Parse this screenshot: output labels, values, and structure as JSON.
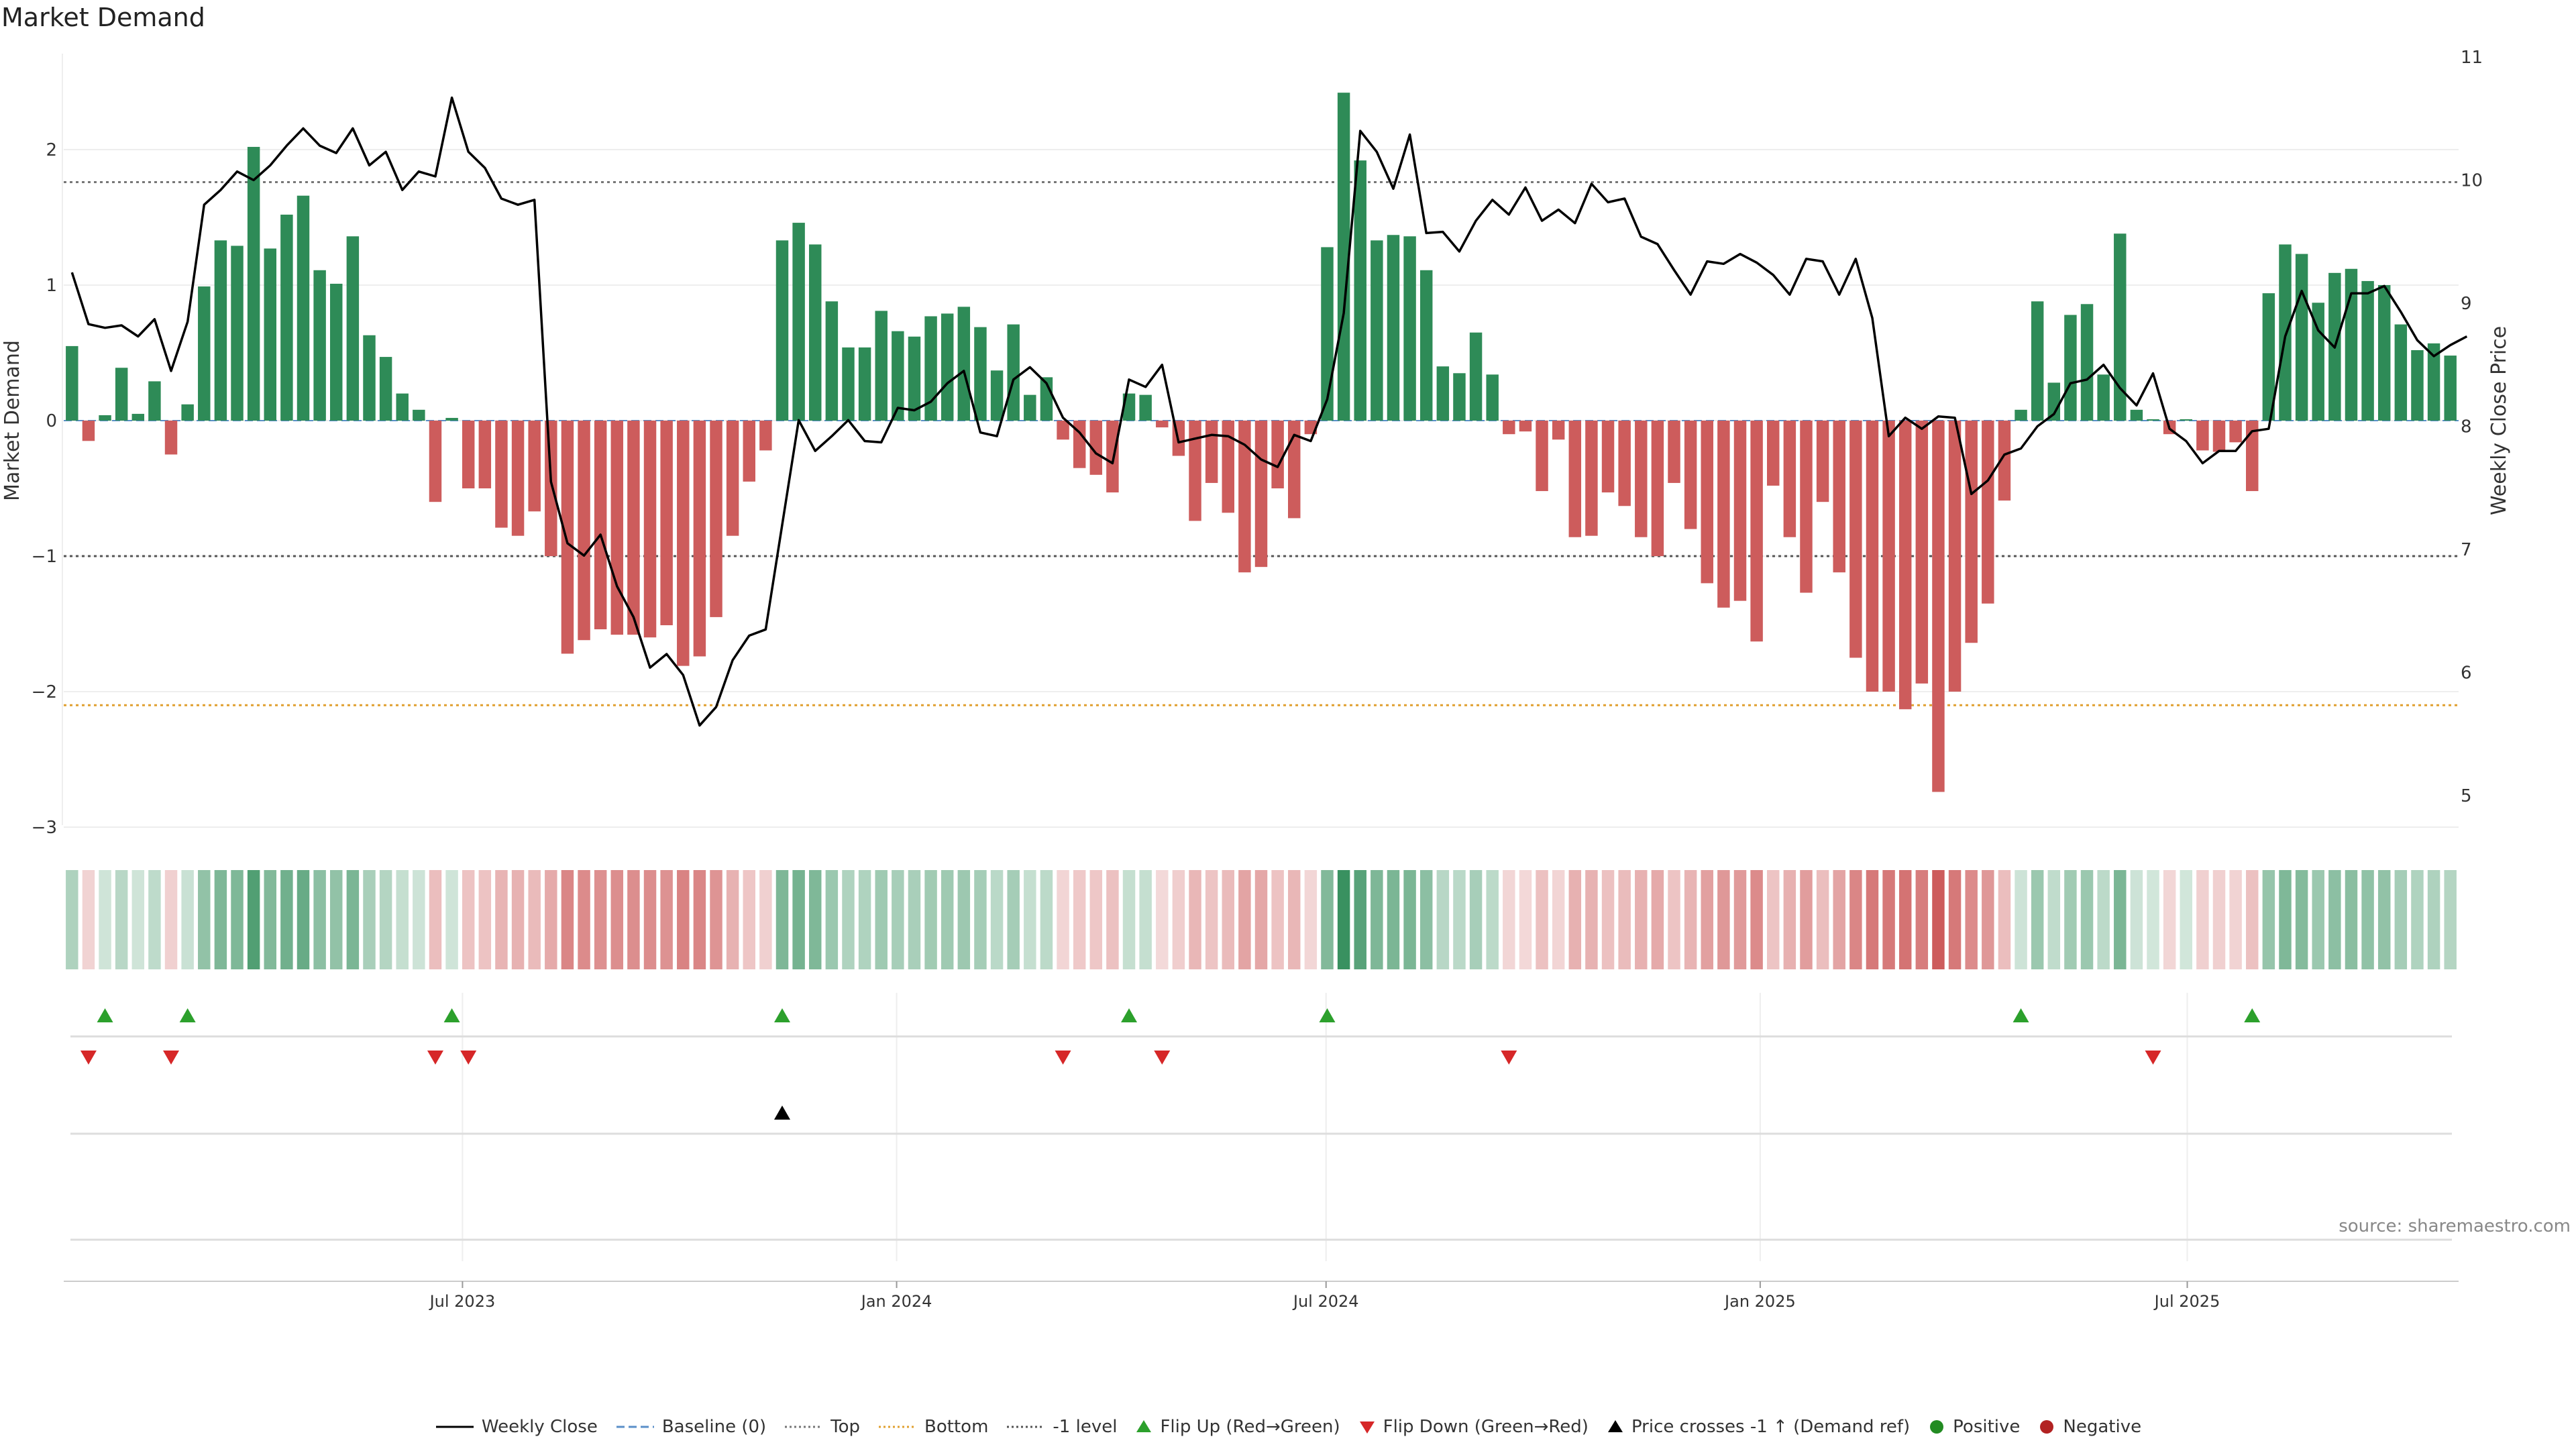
{
  "title": "Market Demand",
  "source": "source: sharemaestro.com",
  "colors": {
    "positive_bar": "#2e8b57",
    "negative_bar": "#cd5c5c",
    "price_line": "#000000",
    "top_line": "#777777",
    "bottom_line": "#e0a030",
    "minus1_line": "#555555",
    "baseline": "#5a8fc8",
    "flip_up": "#2ca02c",
    "flip_down": "#d62728",
    "cross": "#000000",
    "pos_dot": "#228b22",
    "neg_dot": "#b22222"
  },
  "chart_data": {
    "type": "bar",
    "title": "Market Demand",
    "ylabel": "Market Demand",
    "y2label": "Weekly Close Price",
    "ylim": [
      -3,
      2.7
    ],
    "y2lim": [
      4.7,
      11
    ],
    "yticks": [
      2,
      1,
      0,
      -1,
      -2,
      -3
    ],
    "ytick_labels": [
      "2",
      "1",
      "0",
      "−1",
      "−2",
      "−3"
    ],
    "y2ticks": [
      11,
      10,
      9,
      8,
      7,
      6,
      5
    ],
    "y2tick_labels": [
      "11",
      "10",
      "9",
      "8",
      "7",
      "6",
      "5"
    ],
    "start_date": "2023-01-13",
    "x_ticks": [
      {
        "label": "Jul 2023",
        "date": "2023-07-01"
      },
      {
        "label": "Jan 2024",
        "date": "2024-01-01"
      },
      {
        "label": "Jul 2024",
        "date": "2024-07-01"
      },
      {
        "label": "Jan 2025",
        "date": "2025-01-01"
      },
      {
        "label": "Jul 2025",
        "date": "2025-07-01"
      }
    ],
    "top_level": 1.76,
    "bottom_level": -2.1,
    "minus1_level": -1.0,
    "demand": [
      0.55,
      -0.15,
      0.04,
      0.39,
      0.05,
      0.29,
      -0.25,
      0.12,
      0.99,
      1.33,
      1.29,
      2.02,
      1.27,
      1.52,
      1.66,
      1.11,
      1.01,
      1.36,
      0.63,
      0.47,
      0.2,
      0.08,
      -0.6,
      0.02,
      -0.5,
      -0.5,
      -0.79,
      -0.85,
      -0.67,
      -1.0,
      -1.72,
      -1.62,
      -1.54,
      -1.58,
      -1.58,
      -1.6,
      -1.51,
      -1.81,
      -1.74,
      -1.45,
      -0.85,
      -0.45,
      -0.22,
      1.33,
      1.46,
      1.3,
      0.88,
      0.54,
      0.54,
      0.81,
      0.66,
      0.62,
      0.77,
      0.79,
      0.84,
      0.69,
      0.37,
      0.71,
      0.19,
      0.32,
      -0.14,
      -0.35,
      -0.4,
      -0.53,
      0.2,
      0.19,
      -0.05,
      -0.26,
      -0.74,
      -0.46,
      -0.68,
      -1.12,
      -1.08,
      -0.5,
      -0.72,
      -0.1,
      1.28,
      2.42,
      1.92,
      1.33,
      1.37,
      1.36,
      1.11,
      0.4,
      0.35,
      0.65,
      0.34,
      -0.1,
      -0.08,
      -0.52,
      -0.14,
      -0.86,
      -0.85,
      -0.53,
      -0.63,
      -0.86,
      -1.0,
      -0.46,
      -0.8,
      -1.2,
      -1.38,
      -1.33,
      -1.63,
      -0.48,
      -0.86,
      -1.27,
      -0.6,
      -1.12,
      -1.75,
      -2.0,
      -2.0,
      -2.13,
      -1.94,
      -2.74,
      -2.0,
      -1.64,
      -1.35,
      -0.59,
      0.08,
      0.88,
      0.28,
      0.78,
      0.86,
      0.34,
      1.38,
      0.08,
      0.01,
      -0.1,
      0.01,
      -0.22,
      -0.23,
      -0.16,
      -0.52,
      0.94,
      1.3,
      1.23,
      0.87,
      1.09,
      1.12,
      1.03,
      1.0,
      0.71,
      0.52,
      0.57,
      0.48
    ],
    "price": [
      9.25,
      8.83,
      8.8,
      8.82,
      8.73,
      8.87,
      8.45,
      8.85,
      9.8,
      9.92,
      10.07,
      10.0,
      10.12,
      10.28,
      10.42,
      10.28,
      10.22,
      10.42,
      10.12,
      10.23,
      9.92,
      10.07,
      10.03,
      10.67,
      10.23,
      10.1,
      9.85,
      9.8,
      9.84,
      7.55,
      7.05,
      6.95,
      7.12,
      6.7,
      6.45,
      6.04,
      6.15,
      5.98,
      5.57,
      5.72,
      6.1,
      6.3,
      6.35,
      7.2,
      8.05,
      7.8,
      7.92,
      8.05,
      7.88,
      7.87,
      8.15,
      8.13,
      8.2,
      8.35,
      8.45,
      7.95,
      7.92,
      8.38,
      8.48,
      8.35,
      8.07,
      7.95,
      7.78,
      7.7,
      8.38,
      8.32,
      8.5,
      7.87,
      7.9,
      7.93,
      7.92,
      7.85,
      7.73,
      7.67,
      7.93,
      7.88,
      8.22,
      8.92,
      10.4,
      10.23,
      9.93,
      10.37,
      9.57,
      9.58,
      9.42,
      9.67,
      9.84,
      9.72,
      9.94,
      9.67,
      9.76,
      9.65,
      9.97,
      9.82,
      9.85,
      9.54,
      9.48,
      9.27,
      9.07,
      9.34,
      9.32,
      9.4,
      9.33,
      9.23,
      9.07,
      9.36,
      9.34,
      9.07,
      9.36,
      8.88,
      7.92,
      8.07,
      7.98,
      8.08,
      8.07,
      7.45,
      7.56,
      7.77,
      7.82,
      8.0,
      8.1,
      8.35,
      8.38,
      8.5,
      8.31,
      8.17,
      8.43,
      7.98,
      7.88,
      7.7,
      7.8,
      7.8,
      7.96,
      7.98,
      8.73,
      9.1,
      8.78,
      8.64,
      9.08,
      9.08,
      9.14,
      8.93,
      8.7,
      8.57,
      8.66,
      8.73
    ],
    "flip_up_idx": [
      2,
      7,
      23,
      43,
      64,
      76,
      118,
      132
    ],
    "flip_down_idx": [
      1,
      6,
      22,
      24,
      60,
      66,
      87,
      126
    ],
    "cross_up_idx": [
      43
    ]
  },
  "legend": [
    {
      "label": "Weekly Close",
      "kind": "line",
      "color": "#000000",
      "dash": ""
    },
    {
      "label": "Baseline (0)",
      "kind": "line",
      "color": "#5a8fc8",
      "dash": "12,6"
    },
    {
      "label": "Top",
      "kind": "line",
      "color": "#777777",
      "dash": "3,4"
    },
    {
      "label": "Bottom",
      "kind": "line",
      "color": "#e0a030",
      "dash": "3,4"
    },
    {
      "label": "-1 level",
      "kind": "line",
      "color": "#555555",
      "dash": "3,4"
    },
    {
      "label": "Flip Up (Red→Green)",
      "kind": "tri-up",
      "color": "#2ca02c"
    },
    {
      "label": "Flip Down (Green→Red)",
      "kind": "tri-down",
      "color": "#d62728"
    },
    {
      "label": "Price crosses -1 ↑ (Demand ref)",
      "kind": "tri-up",
      "color": "#000000"
    },
    {
      "label": "Positive",
      "kind": "dot",
      "color": "#228b22"
    },
    {
      "label": "Negative",
      "kind": "dot",
      "color": "#b22222"
    }
  ]
}
